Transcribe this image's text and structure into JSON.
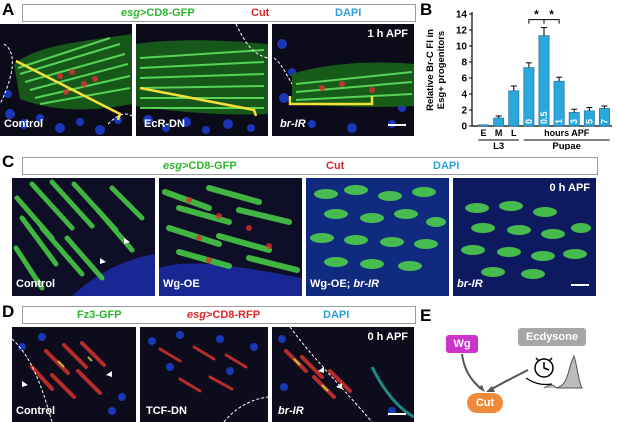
{
  "panels": {
    "A": {
      "letter": "A",
      "legend": {
        "part1": "esg",
        "part2": ">CD8-GFP",
        "part3": "Cut",
        "part4": "DAPI"
      },
      "images": [
        {
          "label": "Control",
          "label_italic": false
        },
        {
          "label": "EcR-DN",
          "label_italic": false
        },
        {
          "label": "br-IR",
          "label_italic": true,
          "timepoint": "1 h APF"
        }
      ]
    },
    "B": {
      "letter": "B"
    },
    "C": {
      "letter": "C",
      "legend": {
        "part1": "esg",
        "part2": ">CD8-GFP",
        "part3": "Cut",
        "part4": "DAPI"
      },
      "images": [
        {
          "label": "Control"
        },
        {
          "label": "Wg-OE"
        },
        {
          "label_a": "Wg-OE; ",
          "label_b": "br-IR"
        },
        {
          "label": "br-IR",
          "timepoint": "0 h APF"
        }
      ]
    },
    "D": {
      "letter": "D",
      "legend": {
        "part1": "Fz3-GFP",
        "part2": "esg",
        "part3": ">CD8-RFP",
        "part4": "DAPI"
      },
      "images": [
        {
          "label": "Control"
        },
        {
          "label": "TCF-DN"
        },
        {
          "label": "br-IR",
          "timepoint": "0 h APF"
        }
      ]
    },
    "E": {
      "letter": "E",
      "wg": "Wg",
      "ecdysone": "Ecdysone",
      "cut": "Cut"
    }
  },
  "colors": {
    "gfp": "#2db52d",
    "cut": "#e0262a",
    "dapi": "#2aa0d8",
    "bar": "#2aa8dc",
    "wg": "#cc33cc",
    "ecd": "#a6a6a6",
    "cut_node": "#f08a3a"
  },
  "chart_data": {
    "type": "bar",
    "ylabel": "Relative Br-C FI in Esg+ progenitors",
    "ylim": [
      0,
      14
    ],
    "yticks": [
      0,
      2,
      4,
      6,
      8,
      10,
      12,
      14
    ],
    "categories": [
      "E",
      "M",
      "L",
      "0",
      "0.5",
      "1",
      "3",
      "5",
      "7"
    ],
    "values": [
      0.15,
      1.0,
      4.4,
      7.3,
      11.3,
      5.6,
      1.7,
      1.9,
      2.2
    ],
    "errors": [
      0.05,
      0.25,
      0.6,
      0.6,
      1.0,
      0.5,
      0.4,
      0.4,
      0.3
    ],
    "inbar_labels": [
      "",
      "",
      "",
      "0",
      "0.5",
      "1",
      "3",
      "5",
      "7"
    ],
    "group_labels": {
      "hours": "hours APF",
      "l3": "L3",
      "pupae": "Pupae"
    },
    "significance": [
      "*",
      "*"
    ]
  }
}
